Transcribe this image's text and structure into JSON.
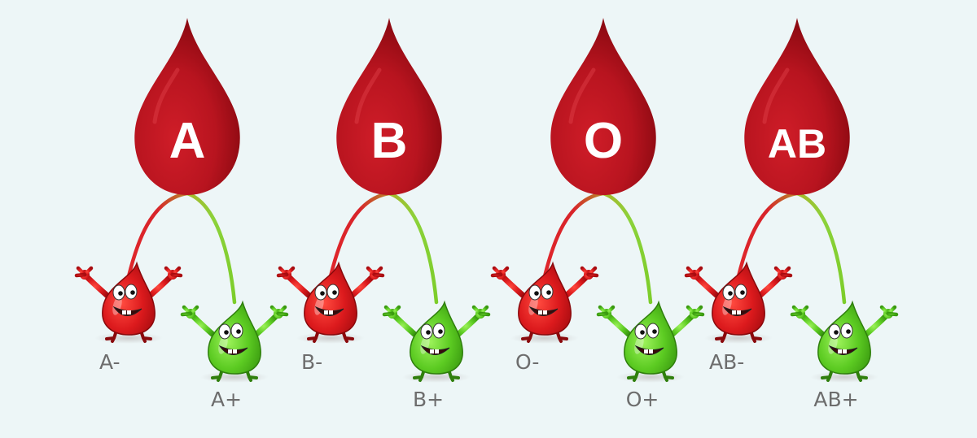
{
  "colors": {
    "background": "#edf6f7",
    "drop_main": "#b8141f",
    "drop_dark": "#8e0a12",
    "negative_char": "#d9131c",
    "positive_char": "#55c81e",
    "negative_branch": "#d8242a",
    "positive_branch": "#8cd23a",
    "label_text": "#6d6d6d"
  },
  "blood_groups": [
    {
      "type": "A",
      "negative_label": "A-",
      "positive_label": "A+"
    },
    {
      "type": "B",
      "negative_label": "B-",
      "positive_label": "B+"
    },
    {
      "type": "O",
      "negative_label": "O-",
      "positive_label": "O+"
    },
    {
      "type": "AB",
      "negative_label": "AB-",
      "positive_label": "AB+"
    }
  ]
}
